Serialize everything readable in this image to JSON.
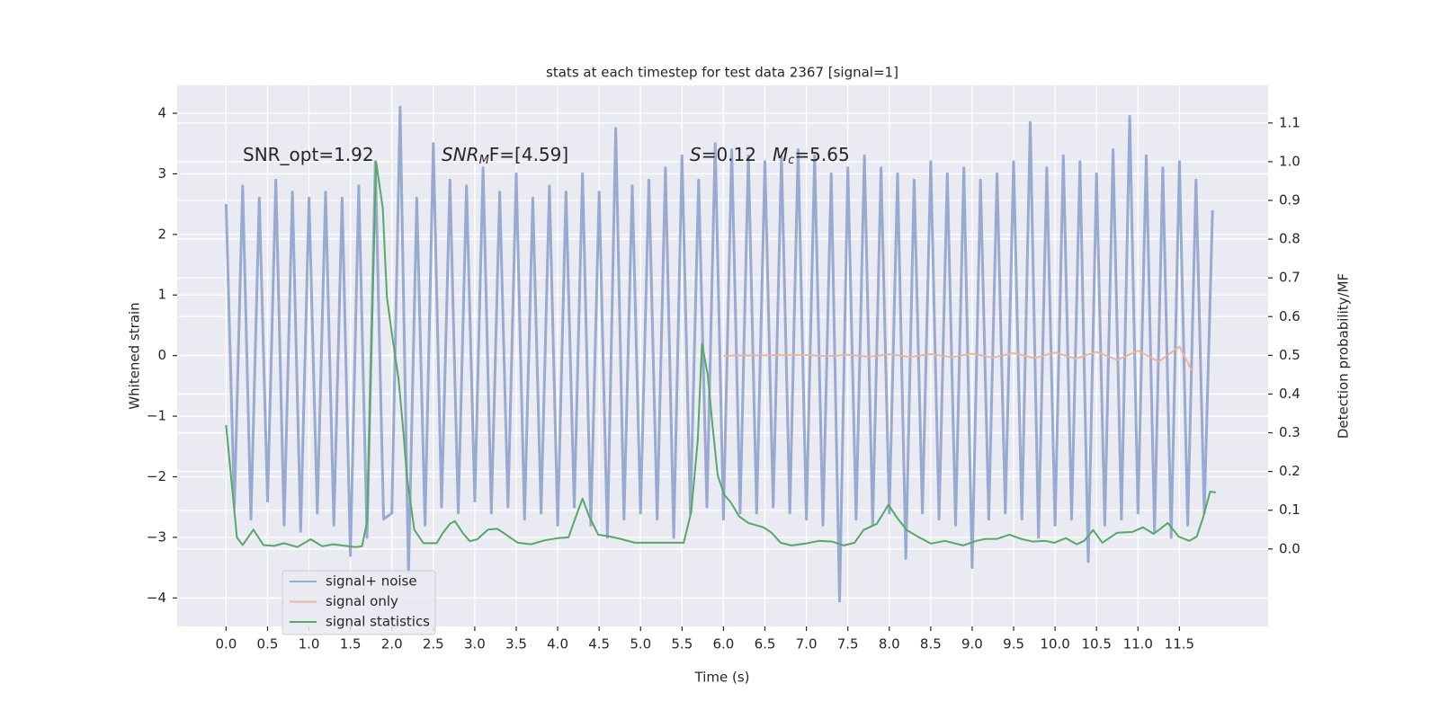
{
  "chart_data": {
    "type": "line",
    "title": "stats at each timestep for test data 2367 [signal=1]",
    "xlabel": "Time (s)",
    "ylabel": "Whitened strain",
    "y2label": "Detection probability/MF",
    "annotations": [
      {
        "parts": [
          "SNR_opt=1.92"
        ]
      },
      {
        "parts": [
          "SNR",
          "M",
          "F=[4.59]"
        ]
      },
      {
        "parts": [
          "S",
          "=0.12"
        ]
      },
      {
        "parts": [
          "M",
          "c",
          "=5.65"
        ]
      }
    ],
    "xlim": [
      -0.59,
      12.57
    ],
    "xticks": [
      {
        "value": 0,
        "label": "0.0"
      },
      0.5,
      {
        "value": 1,
        "label": "1.0"
      },
      1.5,
      {
        "value": 2,
        "label": "2.0"
      },
      2.5,
      {
        "value": 3,
        "label": "3.0"
      },
      3.5,
      {
        "value": 4,
        "label": "4.0"
      },
      4.5,
      {
        "value": 5,
        "label": "5.0"
      },
      5.5,
      {
        "value": 6,
        "label": "6.0"
      },
      6.5,
      {
        "value": 7,
        "label": "7.0"
      },
      7.5,
      {
        "value": 8,
        "label": "8.0"
      },
      8.5,
      {
        "value": 9,
        "label": "9.0"
      },
      9.5,
      {
        "value": 10,
        "label": "10.0"
      },
      10.5,
      {
        "value": 11,
        "label": "11.0"
      },
      11.5
    ],
    "ylim": [
      -4.47,
      4.46
    ],
    "yticks": [
      {
        "value": -4,
        "label": "−4"
      },
      {
        "value": -3,
        "label": "−3"
      },
      {
        "value": -2,
        "label": "−2"
      },
      {
        "value": -1,
        "label": "−1"
      },
      0,
      1,
      2,
      3,
      4
    ],
    "y2lim": [
      -0.2,
      1.197
    ],
    "y2ticks": [
      {
        "value": 0,
        "label": "0.0"
      },
      0.1,
      0.2,
      0.3,
      0.4,
      0.5,
      0.6,
      0.7,
      0.8,
      0.9,
      {
        "value": 1,
        "label": "1.0"
      },
      1.1
    ],
    "grid": true,
    "legend": "lower left",
    "series": [
      {
        "name": "signal+ noise",
        "color": "#98aacf",
        "x": [
          0.0,
          0.1,
          0.2,
          0.3,
          0.4,
          0.5,
          0.6,
          0.7,
          0.8,
          0.9,
          1.0,
          1.1,
          1.2,
          1.3,
          1.4,
          1.5,
          1.6,
          1.7,
          1.8,
          1.9,
          2.0,
          2.1,
          2.2,
          2.3,
          2.4,
          2.5,
          2.6,
          2.7,
          2.8,
          2.9,
          3.0,
          3.1,
          3.2,
          3.3,
          3.4,
          3.5,
          3.6,
          3.7,
          3.8,
          3.9,
          4.0,
          4.1,
          4.2,
          4.3,
          4.4,
          4.5,
          4.6,
          4.7,
          4.8,
          4.9,
          5.0,
          5.1,
          5.2,
          5.3,
          5.4,
          5.5,
          5.6,
          5.7,
          5.8,
          5.9,
          6.0,
          6.1,
          6.2,
          6.3,
          6.4,
          6.5,
          6.6,
          6.7,
          6.8,
          6.9,
          7.0,
          7.1,
          7.2,
          7.3,
          7.4,
          7.5,
          7.6,
          7.7,
          7.8,
          7.9,
          8.0,
          8.1,
          8.2,
          8.3,
          8.4,
          8.5,
          8.6,
          8.7,
          8.8,
          8.9,
          9.0,
          9.1,
          9.2,
          9.3,
          9.4,
          9.5,
          9.6,
          9.7,
          9.8,
          9.9,
          10.0,
          10.1,
          10.2,
          10.3,
          10.4,
          10.5,
          10.6,
          10.7,
          10.8,
          10.9,
          11.0,
          11.1,
          11.2,
          11.3,
          11.4,
          11.5,
          11.6,
          11.7,
          11.8,
          11.9
        ],
        "values": [
          2.5,
          -2.5,
          2.8,
          -2.7,
          2.6,
          -2.4,
          2.9,
          -2.8,
          2.7,
          -2.9,
          2.6,
          -2.6,
          2.7,
          -2.8,
          2.6,
          -3.3,
          2.8,
          -3.0,
          3.2,
          -2.7,
          -2.6,
          4.1,
          -3.6,
          2.6,
          -2.8,
          3.5,
          -2.5,
          2.9,
          -2.6,
          2.8,
          -2.4,
          3.1,
          -2.6,
          2.7,
          -2.5,
          3.0,
          -2.7,
          2.6,
          -2.6,
          2.8,
          -2.8,
          2.7,
          -2.5,
          3.0,
          -2.8,
          2.7,
          -3.0,
          3.75,
          -2.7,
          2.8,
          -2.6,
          2.9,
          -2.7,
          3.1,
          -3.0,
          3.3,
          -2.6,
          2.9,
          -2.5,
          3.5,
          -2.7,
          3.4,
          -2.6,
          3.3,
          -2.6,
          3.2,
          -2.5,
          3.3,
          -2.6,
          3.4,
          -2.7,
          3.3,
          -2.8,
          3.0,
          -4.05,
          3.1,
          -2.7,
          3.3,
          -2.8,
          3.1,
          -2.6,
          3.0,
          -3.35,
          2.9,
          -2.6,
          3.2,
          -2.7,
          3.0,
          -2.8,
          3.1,
          -3.5,
          2.9,
          -2.7,
          3.0,
          -2.6,
          3.2,
          -2.7,
          3.85,
          -3.0,
          3.1,
          -2.8,
          3.3,
          -2.7,
          3.2,
          -3.4,
          3.0,
          -2.8,
          3.4,
          -2.7,
          3.95,
          -2.6,
          3.3,
          -2.9,
          3.1,
          -3.0,
          3.2,
          -2.8,
          2.9,
          -2.6,
          2.4
        ]
      },
      {
        "name": "signal only",
        "color": "#e8b79e",
        "x": [
          6.0,
          7.0,
          7.25,
          7.5,
          7.75,
          8.0,
          8.25,
          8.5,
          8.75,
          9.0,
          9.25,
          9.5,
          9.75,
          10.0,
          10.25,
          10.5,
          10.75,
          11.0,
          11.25,
          11.5,
          11.65
        ],
        "values": [
          0.0,
          0.01,
          -0.01,
          0.015,
          -0.015,
          0.02,
          -0.02,
          0.025,
          -0.025,
          0.03,
          -0.03,
          0.04,
          -0.04,
          0.05,
          -0.05,
          0.06,
          -0.07,
          0.08,
          -0.1,
          0.15,
          -0.25
        ]
      },
      {
        "name": "signal statistics",
        "color": "#55a868",
        "axis": "y2",
        "x": [
          0.0,
          0.13,
          0.2,
          0.33,
          0.45,
          0.58,
          0.7,
          0.86,
          1.02,
          1.16,
          1.29,
          1.56,
          1.64,
          1.7,
          1.81,
          1.89,
          1.94,
          2.01,
          2.08,
          2.14,
          2.18,
          2.27,
          2.38,
          2.54,
          2.61,
          2.7,
          2.76,
          2.86,
          2.94,
          3.03,
          3.16,
          3.27,
          3.37,
          3.52,
          3.68,
          3.84,
          4.0,
          4.13,
          4.22,
          4.3,
          4.38,
          4.49,
          4.63,
          4.76,
          4.93,
          5.2,
          5.36,
          5.52,
          5.61,
          5.69,
          5.74,
          5.81,
          5.87,
          5.93,
          6.01,
          6.09,
          6.19,
          6.3,
          6.48,
          6.58,
          6.69,
          6.82,
          6.99,
          7.15,
          7.31,
          7.45,
          7.58,
          7.69,
          7.85,
          7.99,
          8.1,
          8.21,
          8.36,
          8.5,
          8.67,
          8.89,
          9.05,
          9.16,
          9.3,
          9.45,
          9.59,
          9.73,
          9.88,
          9.99,
          10.13,
          10.26,
          10.35,
          10.46,
          10.57,
          10.75,
          10.93,
          11.06,
          11.19,
          11.36,
          11.49,
          11.62,
          11.71,
          11.79,
          11.87,
          11.94
        ],
        "values": [
          0.32,
          0.03,
          0.01,
          0.05,
          0.01,
          0.008,
          0.015,
          0.005,
          0.025,
          0.007,
          0.012,
          0.005,
          0.007,
          0.07,
          1.0,
          0.88,
          0.65,
          0.54,
          0.44,
          0.3,
          0.19,
          0.05,
          0.015,
          0.015,
          0.04,
          0.065,
          0.072,
          0.04,
          0.02,
          0.025,
          0.05,
          0.052,
          0.038,
          0.016,
          0.012,
          0.022,
          0.028,
          0.03,
          0.084,
          0.13,
          0.084,
          0.037,
          0.032,
          0.026,
          0.016,
          0.016,
          0.016,
          0.016,
          0.095,
          0.28,
          0.53,
          0.45,
          0.315,
          0.19,
          0.14,
          0.12,
          0.084,
          0.067,
          0.056,
          0.042,
          0.016,
          0.009,
          0.014,
          0.021,
          0.019,
          0.009,
          0.016,
          0.049,
          0.065,
          0.114,
          0.079,
          0.049,
          0.03,
          0.014,
          0.021,
          0.009,
          0.021,
          0.026,
          0.026,
          0.037,
          0.026,
          0.019,
          0.021,
          0.016,
          0.028,
          0.012,
          0.021,
          0.049,
          0.016,
          0.042,
          0.044,
          0.056,
          0.039,
          0.067,
          0.032,
          0.021,
          0.032,
          0.084,
          0.148,
          0.146
        ]
      }
    ]
  }
}
